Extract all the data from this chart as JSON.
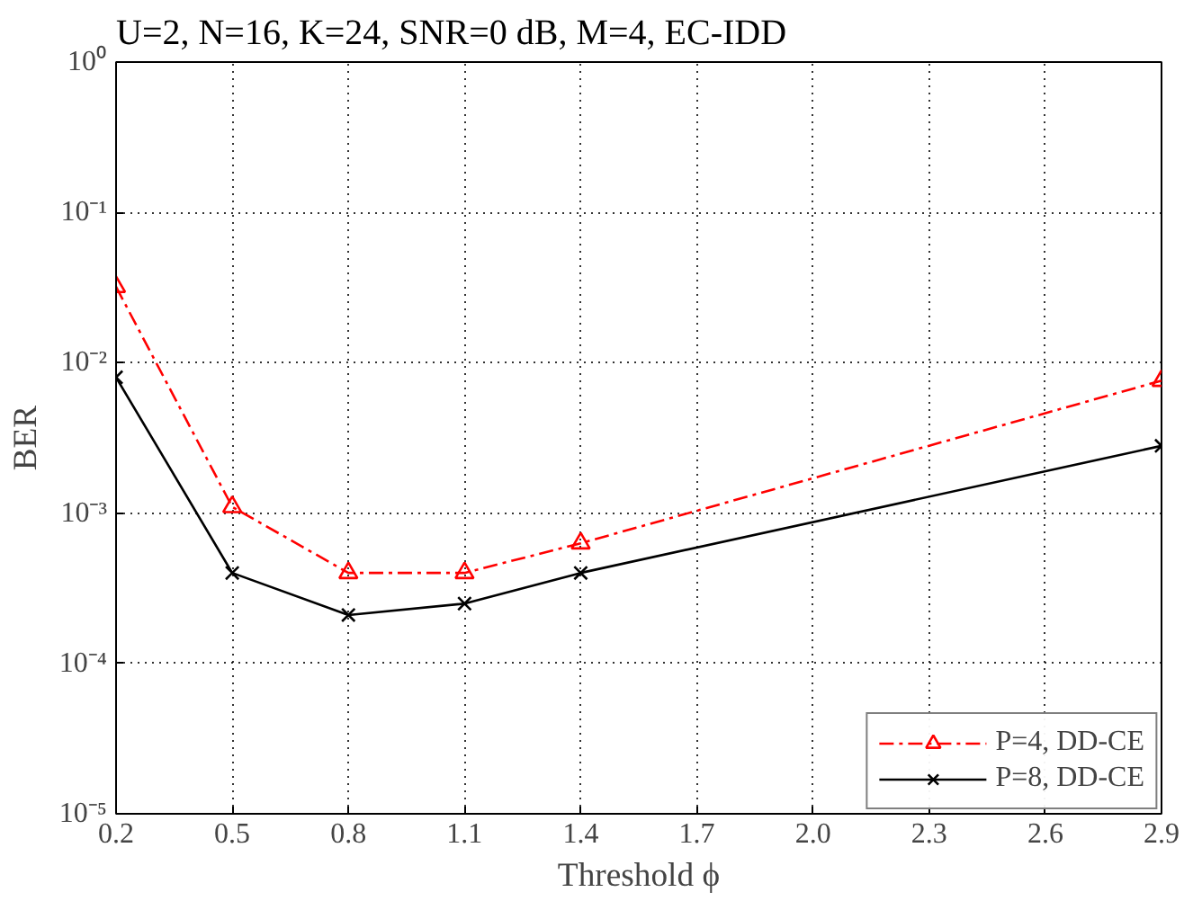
{
  "chart_data": {
    "type": "line",
    "title": "U=2, N=16, K=24, SNR=0 dB, M=4, EC-IDD",
    "xlabel": "Threshold ϕ",
    "ylabel": "BER",
    "log": "y",
    "x": [
      0.2,
      0.5,
      0.8,
      1.1,
      1.4,
      2.9
    ],
    "series": [
      {
        "name": "P=4, DD-CE",
        "color": "#ff0000",
        "marker": "triangle",
        "line_style": "dashdot",
        "values": [
          0.032,
          0.0011,
          0.0004,
          0.0004,
          0.00063,
          0.0076
        ]
      },
      {
        "name": "P=8, DD-CE",
        "color": "#000000",
        "marker": "cross",
        "line_style": "solid",
        "values": [
          0.008,
          0.0004,
          0.00021,
          0.00025,
          0.0004,
          0.0028
        ]
      }
    ],
    "xlim": [
      0.2,
      2.9
    ],
    "xticks": [
      0.2,
      0.5,
      0.8,
      1.1,
      1.4,
      1.7,
      {
        "value": 2.0,
        "label": "2.0"
      },
      2.3,
      2.6,
      2.9
    ],
    "ylim": [
      1e-05,
      1
    ],
    "yticks": [
      {
        "value": 1e-05,
        "label": "10⁻⁵"
      },
      {
        "value": 0.0001,
        "label": "10⁻⁴"
      },
      {
        "value": 0.001,
        "label": "10⁻³"
      },
      {
        "value": 0.01,
        "label": "10⁻²"
      },
      {
        "value": 0.1,
        "label": "10⁻¹"
      },
      {
        "value": 1,
        "label": "10⁰"
      }
    ],
    "grid": true,
    "legend": "bottom right"
  }
}
